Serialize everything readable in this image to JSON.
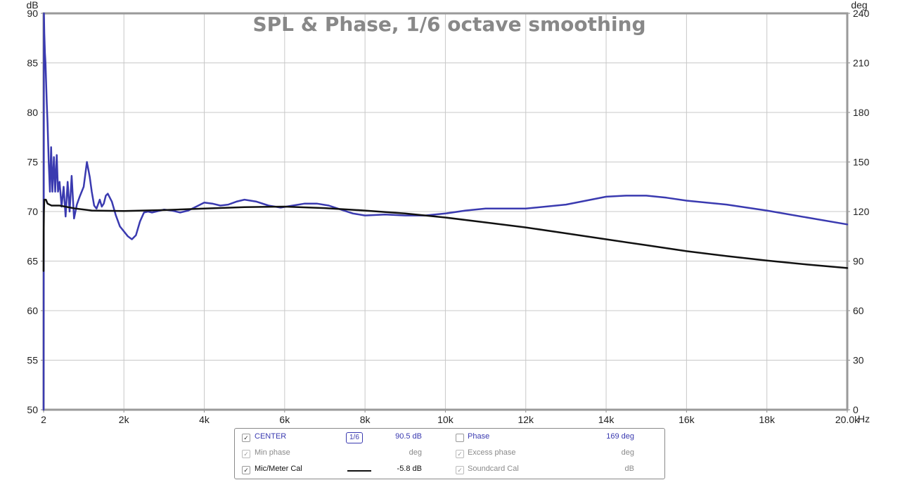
{
  "chart_data": {
    "type": "line",
    "title": "SPL & Phase, 1/6 octave smoothing",
    "xlabel": "Hz",
    "ylabel_left": "dB",
    "ylabel_right": "deg",
    "xlim": [
      2,
      20000
    ],
    "ylim_left": [
      50,
      90
    ],
    "ylim_right": [
      0,
      240
    ],
    "x_ticks": [
      2,
      2000,
      4000,
      6000,
      8000,
      10000,
      12000,
      14000,
      16000,
      18000,
      20000
    ],
    "x_tick_labels": [
      "2",
      "2k",
      "4k",
      "6k",
      "8k",
      "10k",
      "12k",
      "14k",
      "16k",
      "18k",
      "20.0k"
    ],
    "y_left_ticks": [
      50,
      55,
      60,
      65,
      70,
      75,
      80,
      85,
      90
    ],
    "y_right_ticks": [
      0,
      30,
      60,
      90,
      120,
      150,
      180,
      210,
      240
    ],
    "grid": true,
    "series": [
      {
        "name": "CENTER",
        "color": "#3a3ab0",
        "axis": "left",
        "x": [
          2,
          10,
          20,
          35,
          50,
          80,
          100,
          130,
          160,
          190,
          220,
          260,
          290,
          330,
          360,
          400,
          450,
          500,
          550,
          600,
          650,
          700,
          760,
          830,
          900,
          1000,
          1080,
          1150,
          1200,
          1260,
          1320,
          1400,
          1450,
          1500,
          1550,
          1600,
          1700,
          1800,
          1900,
          2000,
          2100,
          2200,
          2300,
          2400,
          2500,
          2600,
          2700,
          2800,
          3000,
          3200,
          3400,
          3600,
          3800,
          4000,
          4200,
          4400,
          4600,
          4800,
          5000,
          5300,
          5600,
          5900,
          6200,
          6500,
          6800,
          7100,
          7400,
          7700,
          8000,
          8500,
          9000,
          9500,
          10000,
          10500,
          11000,
          12000,
          13000,
          14000,
          14500,
          15000,
          15500,
          16000,
          17000,
          18000,
          19000,
          20000
        ],
        "y": [
          50,
          90,
          88,
          86,
          85,
          81,
          79,
          75,
          72,
          76.5,
          72,
          75.5,
          72,
          75.7,
          72,
          73,
          70.5,
          72.5,
          69.5,
          73,
          70,
          73.6,
          69.3,
          70.7,
          71.5,
          72.5,
          75,
          73.5,
          72,
          70.6,
          70.3,
          71.2,
          70.5,
          70.8,
          71.6,
          71.8,
          71,
          69.6,
          68.5,
          68,
          67.5,
          67.2,
          67.6,
          69,
          69.9,
          70,
          69.9,
          70,
          70.2,
          70.1,
          69.9,
          70.1,
          70.5,
          70.9,
          70.8,
          70.6,
          70.7,
          71,
          71.2,
          71,
          70.6,
          70.4,
          70.6,
          70.8,
          70.8,
          70.6,
          70.2,
          69.8,
          69.6,
          69.7,
          69.6,
          69.6,
          69.8,
          70.1,
          70.3,
          70.3,
          70.7,
          71.5,
          71.6,
          71.6,
          71.4,
          71.1,
          70.7,
          70.1,
          69.4,
          68.7
        ]
      },
      {
        "name": "Mic/Meter Cal",
        "color": "#111111",
        "axis": "left",
        "x": [
          2,
          5,
          10,
          20,
          60,
          100,
          200,
          400,
          800,
          1200,
          2000,
          3000,
          4000,
          5000,
          6000,
          7000,
          8000,
          9000,
          10000,
          11000,
          12000,
          13000,
          14000,
          15000,
          16000,
          17000,
          18000,
          19000,
          20000
        ],
        "y": [
          64,
          68,
          70,
          71.2,
          71.2,
          70.8,
          70.6,
          70.6,
          70.3,
          70.1,
          70.05,
          70.15,
          70.3,
          70.45,
          70.5,
          70.35,
          70.1,
          69.8,
          69.4,
          68.9,
          68.4,
          67.8,
          67.2,
          66.6,
          66.0,
          65.5,
          65.05,
          64.65,
          64.3
        ]
      }
    ]
  },
  "legend": {
    "rows": [
      {
        "left_label": "CENTER",
        "left_checked": true,
        "left_enabled": true,
        "badge": "1/6",
        "value": "90.5 dB",
        "right_label": "Phase",
        "right_checked": false,
        "right_enabled": true,
        "right_value": "169 deg"
      },
      {
        "left_label": "Min phase",
        "left_checked": true,
        "left_enabled": false,
        "value": "deg",
        "right_label": "Excess phase",
        "right_checked": true,
        "right_enabled": false,
        "right_value": "deg"
      },
      {
        "left_label": "Mic/Meter Cal",
        "left_checked": true,
        "left_enabled": true,
        "value": "-5.8 dB",
        "right_label": "Soundcard Cal",
        "right_checked": true,
        "right_enabled": false,
        "right_value": "dB"
      }
    ],
    "check_glyph": "✓"
  }
}
